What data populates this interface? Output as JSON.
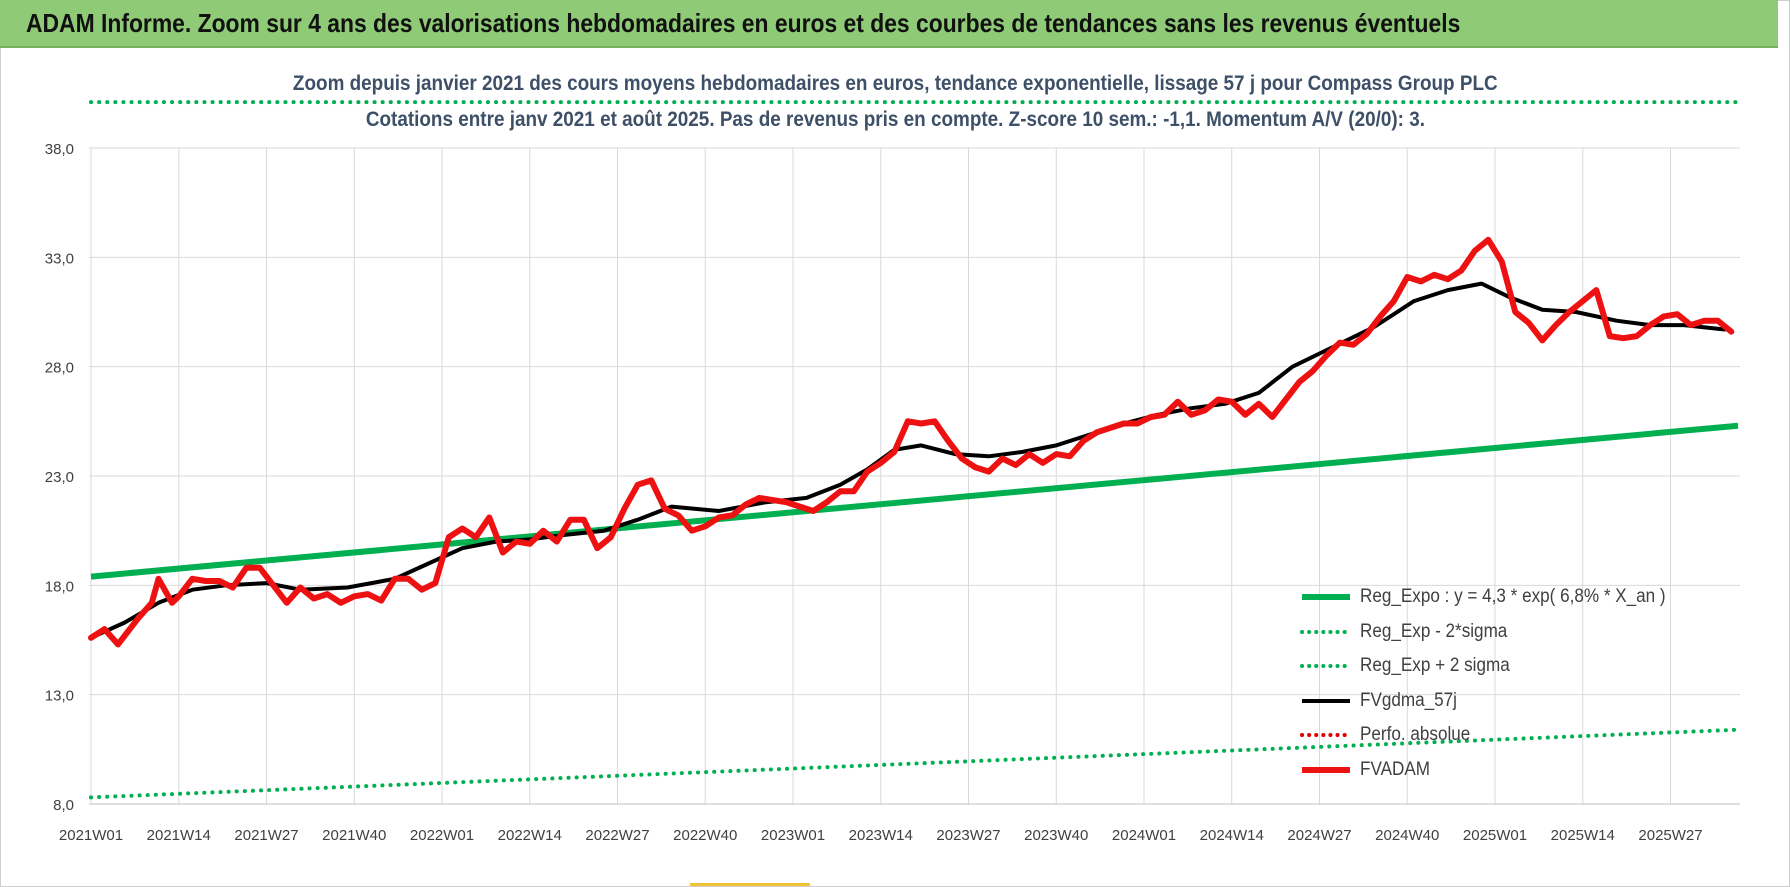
{
  "header": {
    "title": "ADAM Informe. Zoom sur 4 ans des valorisations hebdomadaires en euros et des courbes de tendances sans les revenus éventuels"
  },
  "chart_data": {
    "type": "line",
    "subtitle_line1": "Zoom depuis janvier 2021 des cours moyens hebdomadaires en euros, tendance exponentielle, lissage 57 j pour Compass Group PLC",
    "subtitle_line2": "Cotations entre janv 2021 et août 2025.  Pas de revenus pris en compte. Z-score 10 sem.: -1,1. Momentum A/V (20/0): 3.",
    "xlabel": "",
    "ylabel": "",
    "ylim": [
      8,
      38
    ],
    "yticks": [
      "8,0",
      "13,0",
      "18,0",
      "23,0",
      "28,0",
      "33,0",
      "38,0"
    ],
    "x_tick_labels": [
      "2021W01",
      "2021W14",
      "2021W27",
      "2021W40",
      "2022W01",
      "2022W14",
      "2022W27",
      "2022W40",
      "2023W01",
      "2023W14",
      "2023W27",
      "2023W40",
      "2024W01",
      "2024W14",
      "2024W27",
      "2024W40",
      "2025W01",
      "2025W14",
      "2025W27"
    ],
    "x_week_range": [
      0,
      244
    ],
    "grid": true,
    "legend_position": "bottom-right",
    "series": [
      {
        "name": "Reg_Expo : y = 4,3 * exp( 6,8% *  X_an )",
        "color": "#00b050",
        "style": "solid",
        "x": [
          0,
          244
        ],
        "y": [
          18.4,
          25.3
        ]
      },
      {
        "name": "Reg_Exp - 2*sigma",
        "color": "#00b050",
        "style": "dotted",
        "x": [
          0,
          244
        ],
        "y": [
          8.3,
          11.4
        ]
      },
      {
        "name": "Reg_Exp + 2 sigma",
        "color": "#00b050",
        "style": "dotted",
        "x": [
          0,
          244
        ],
        "y": [
          40.1,
          40.1
        ]
      },
      {
        "name": "FVgdma_57j",
        "color": "#000000",
        "style": "solid",
        "x": [
          0,
          5,
          10,
          15,
          20,
          26,
          31,
          38,
          45,
          50,
          55,
          60,
          65,
          70,
          76,
          81,
          86,
          93,
          100,
          106,
          111,
          115,
          119,
          123,
          128,
          133,
          138,
          143,
          148,
          153,
          158,
          163,
          168,
          173,
          178,
          184,
          190,
          196,
          201,
          206,
          210,
          215,
          220,
          226,
          231,
          236,
          242
        ],
        "y": [
          15.6,
          16.3,
          17.2,
          17.8,
          18.0,
          18.1,
          17.8,
          17.9,
          18.3,
          19.0,
          19.7,
          20.0,
          20.1,
          20.3,
          20.5,
          21.0,
          21.6,
          21.4,
          21.8,
          22.0,
          22.6,
          23.3,
          24.2,
          24.4,
          24.0,
          23.9,
          24.1,
          24.4,
          24.9,
          25.4,
          25.8,
          26.1,
          26.3,
          26.8,
          28.0,
          28.9,
          29.8,
          31.0,
          31.5,
          31.8,
          31.2,
          30.6,
          30.5,
          30.1,
          29.9,
          29.9,
          29.7
        ]
      },
      {
        "name": "Perfo. absolue",
        "color": "#e00000",
        "style": "dotted",
        "x": [],
        "y": []
      },
      {
        "name": "FVADAM",
        "color": "#ee1111",
        "style": "solid",
        "x": [
          0,
          2,
          4,
          5,
          7,
          9,
          10,
          12,
          13,
          15,
          17,
          19,
          21,
          23,
          25,
          27,
          29,
          31,
          33,
          35,
          37,
          39,
          41,
          43,
          45,
          47,
          49,
          51,
          53,
          55,
          57,
          59,
          61,
          63,
          65,
          67,
          69,
          71,
          73,
          75,
          77,
          79,
          81,
          83,
          85,
          87,
          89,
          91,
          93,
          95,
          97,
          99,
          101,
          103,
          105,
          107,
          109,
          111,
          113,
          115,
          117,
          119,
          121,
          123,
          125,
          127,
          129,
          131,
          133,
          135,
          137,
          139,
          141,
          143,
          145,
          147,
          149,
          151,
          153,
          155,
          157,
          159,
          161,
          163,
          165,
          167,
          169,
          171,
          173,
          175,
          177,
          179,
          181,
          183,
          185,
          187,
          189,
          191,
          193,
          195,
          197,
          199,
          201,
          203,
          205,
          207,
          209,
          211,
          213,
          215,
          217,
          219,
          221,
          223,
          225,
          227,
          229,
          231,
          233,
          235,
          237,
          239,
          241,
          243
        ],
        "y": [
          15.6,
          16.0,
          15.3,
          15.7,
          16.5,
          17.2,
          18.3,
          17.2,
          17.5,
          18.3,
          18.2,
          18.2,
          17.9,
          18.8,
          18.8,
          18.0,
          17.2,
          17.9,
          17.4,
          17.6,
          17.2,
          17.5,
          17.6,
          17.3,
          18.3,
          18.3,
          17.8,
          18.1,
          20.2,
          20.6,
          20.2,
          21.1,
          19.5,
          20.0,
          19.9,
          20.5,
          20.0,
          21.0,
          21.0,
          19.7,
          20.2,
          21.5,
          22.6,
          22.8,
          21.5,
          21.2,
          20.5,
          20.7,
          21.1,
          21.2,
          21.7,
          22.0,
          21.9,
          21.8,
          21.6,
          21.4,
          21.8,
          22.3,
          22.3,
          23.2,
          23.6,
          24.1,
          25.5,
          25.4,
          25.5,
          24.6,
          23.8,
          23.4,
          23.2,
          23.8,
          23.5,
          24.0,
          23.6,
          24.0,
          23.9,
          24.6,
          25.0,
          25.2,
          25.4,
          25.4,
          25.7,
          25.8,
          26.4,
          25.8,
          26.0,
          26.5,
          26.4,
          25.8,
          26.3,
          25.7,
          26.5,
          27.3,
          27.8,
          28.5,
          29.1,
          29.0,
          29.5,
          30.3,
          31.0,
          32.1,
          31.9,
          32.2,
          32.0,
          32.4,
          33.3,
          33.8,
          32.8,
          30.5,
          30.0,
          29.2,
          29.9,
          30.5,
          31.0,
          31.5,
          29.4,
          29.3,
          29.4,
          29.9,
          30.3,
          30.4,
          29.9,
          30.1,
          30.1,
          29.6
        ]
      }
    ]
  }
}
